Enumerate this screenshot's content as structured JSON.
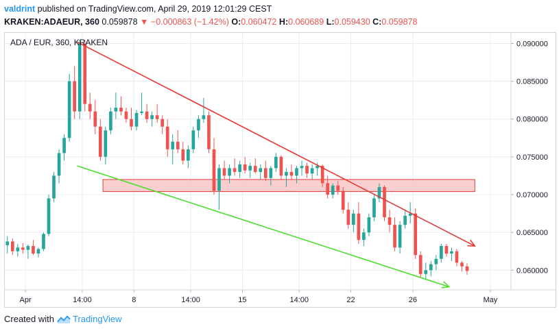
{
  "header": {
    "author": "valdrint",
    "published_text": "published on TradingView.com, April 29, 2019 12:01:29 CEST",
    "symbol": "KRAKEN:ADAEUR, 360",
    "last_price": "0.059878",
    "change_arrow": "▼",
    "change": "−0.000863 (−1.42%)",
    "o_label": "O:",
    "o_value": "0.060472",
    "h_label": "H:",
    "h_value": "0.060689",
    "l_label": "L:",
    "l_value": "0.059430",
    "c_label": "C:",
    "c_value": "0.059878"
  },
  "footer": {
    "created_with": "Created with",
    "brand": "TradingView"
  },
  "colors": {
    "up": "#26a69a",
    "down": "#ef5350",
    "resistance": "#e53935",
    "support": "#4cde2e",
    "zone_fill": "#f8c5c5",
    "zone_stroke": "#e53935",
    "grid": "#e9ecf1",
    "axis_text": "#131722",
    "accent": "#2196f3"
  },
  "chart_data": {
    "type": "candlestick",
    "title": "ADA / EUR, 360, KRAKEN",
    "ylim": [
      0.0574,
      0.0914
    ],
    "y_ticks": [
      "0.090000",
      "0.085000",
      "0.080000",
      "0.075000",
      "0.070000",
      "0.065000",
      "0.060000"
    ],
    "y_tick_values": [
      0.09,
      0.085,
      0.08,
      0.075,
      0.07,
      0.065,
      0.06
    ],
    "x_ticks": [
      {
        "label": "Apr",
        "x": 4
      },
      {
        "label": "14:00",
        "x": 15
      },
      {
        "label": "8",
        "x": 25
      },
      {
        "label": "14:00",
        "x": 36
      },
      {
        "label": "15",
        "x": 46
      },
      {
        "label": "14:00",
        "x": 57
      },
      {
        "label": "22",
        "x": 67
      },
      {
        "label": "26",
        "x": 79
      },
      {
        "label": "May",
        "x": 94
      }
    ],
    "x_range": [
      0,
      98
    ],
    "candles_ohlc": [
      [
        0.0633,
        0.0645,
        0.0622,
        0.0638
      ],
      [
        0.0638,
        0.0642,
        0.062,
        0.0625
      ],
      [
        0.0625,
        0.0635,
        0.0618,
        0.063
      ],
      [
        0.063,
        0.0636,
        0.0622,
        0.0627
      ],
      [
        0.0627,
        0.0634,
        0.0615,
        0.0632
      ],
      [
        0.0632,
        0.064,
        0.062,
        0.0622
      ],
      [
        0.0622,
        0.063,
        0.0617,
        0.0628
      ],
      [
        0.0628,
        0.065,
        0.0625,
        0.0648
      ],
      [
        0.0648,
        0.07,
        0.0645,
        0.0695
      ],
      [
        0.0695,
        0.073,
        0.069,
        0.0725
      ],
      [
        0.0725,
        0.076,
        0.0715,
        0.0755
      ],
      [
        0.0755,
        0.078,
        0.0745,
        0.0775
      ],
      [
        0.0775,
        0.086,
        0.077,
        0.085
      ],
      [
        0.085,
        0.087,
        0.08,
        0.081
      ],
      [
        0.081,
        0.0905,
        0.08,
        0.09
      ],
      [
        0.09,
        0.0905,
        0.081,
        0.082
      ],
      [
        0.082,
        0.0835,
        0.08,
        0.081
      ],
      [
        0.081,
        0.0825,
        0.078,
        0.079
      ],
      [
        0.079,
        0.08,
        0.0745,
        0.075
      ],
      [
        0.075,
        0.079,
        0.074,
        0.0785
      ],
      [
        0.0785,
        0.0815,
        0.078,
        0.081
      ],
      [
        0.081,
        0.0835,
        0.08,
        0.0815
      ],
      [
        0.0815,
        0.083,
        0.0805,
        0.081
      ],
      [
        0.081,
        0.0815,
        0.0795,
        0.08
      ],
      [
        0.08,
        0.0815,
        0.0785,
        0.079
      ],
      [
        0.079,
        0.0812,
        0.0785,
        0.0808
      ],
      [
        0.0808,
        0.0835,
        0.0805,
        0.081
      ],
      [
        0.081,
        0.082,
        0.0795,
        0.08
      ],
      [
        0.08,
        0.081,
        0.079,
        0.0805
      ],
      [
        0.0805,
        0.082,
        0.0795,
        0.08
      ],
      [
        0.08,
        0.0805,
        0.078,
        0.079
      ],
      [
        0.079,
        0.08,
        0.075,
        0.076
      ],
      [
        0.076,
        0.078,
        0.074,
        0.077
      ],
      [
        0.077,
        0.0785,
        0.0755,
        0.076
      ],
      [
        0.076,
        0.077,
        0.074,
        0.0745
      ],
      [
        0.0745,
        0.0765,
        0.0735,
        0.076
      ],
      [
        0.076,
        0.079,
        0.0755,
        0.0785
      ],
      [
        0.0785,
        0.0805,
        0.0775,
        0.08
      ],
      [
        0.08,
        0.0828,
        0.0795,
        0.0805
      ],
      [
        0.0805,
        0.081,
        0.0755,
        0.076
      ],
      [
        0.076,
        0.0775,
        0.07,
        0.0705
      ],
      [
        0.0705,
        0.074,
        0.068,
        0.0735
      ],
      [
        0.0735,
        0.0745,
        0.072,
        0.0725
      ],
      [
        0.0725,
        0.074,
        0.0715,
        0.0735
      ],
      [
        0.0735,
        0.0748,
        0.0725,
        0.073
      ],
      [
        0.073,
        0.0745,
        0.0722,
        0.074
      ],
      [
        0.074,
        0.075,
        0.0728,
        0.0732
      ],
      [
        0.0732,
        0.0742,
        0.0722,
        0.0738
      ],
      [
        0.0738,
        0.0748,
        0.0728,
        0.073
      ],
      [
        0.073,
        0.074,
        0.072,
        0.0735
      ],
      [
        0.0735,
        0.0745,
        0.0718,
        0.0722
      ],
      [
        0.0722,
        0.0738,
        0.0712,
        0.0735
      ],
      [
        0.0735,
        0.0755,
        0.073,
        0.075
      ],
      [
        0.075,
        0.0752,
        0.072,
        0.0725
      ],
      [
        0.0725,
        0.0735,
        0.071,
        0.073
      ],
      [
        0.073,
        0.074,
        0.072,
        0.0725
      ],
      [
        0.0725,
        0.0738,
        0.0715,
        0.0735
      ],
      [
        0.0735,
        0.0745,
        0.0725,
        0.0738
      ],
      [
        0.0738,
        0.0742,
        0.0722,
        0.0728
      ],
      [
        0.0728,
        0.074,
        0.072,
        0.0735
      ],
      [
        0.0735,
        0.0742,
        0.0725,
        0.0738
      ],
      [
        0.0738,
        0.074,
        0.071,
        0.0715
      ],
      [
        0.0715,
        0.0725,
        0.0695,
        0.07
      ],
      [
        0.07,
        0.0715,
        0.0695,
        0.0712
      ],
      [
        0.0712,
        0.0718,
        0.07,
        0.0705
      ],
      [
        0.0705,
        0.071,
        0.0675,
        0.068
      ],
      [
        0.068,
        0.069,
        0.0655,
        0.066
      ],
      [
        0.066,
        0.068,
        0.065,
        0.0675
      ],
      [
        0.0675,
        0.069,
        0.0635,
        0.064
      ],
      [
        0.064,
        0.0655,
        0.0632,
        0.065
      ],
      [
        0.065,
        0.0675,
        0.0645,
        0.067
      ],
      [
        0.067,
        0.07,
        0.0665,
        0.0695
      ],
      [
        0.0695,
        0.0715,
        0.069,
        0.071
      ],
      [
        0.071,
        0.0712,
        0.0665,
        0.067
      ],
      [
        0.067,
        0.068,
        0.065,
        0.066
      ],
      [
        0.066,
        0.067,
        0.0625,
        0.063
      ],
      [
        0.063,
        0.0665,
        0.0622,
        0.066
      ],
      [
        0.066,
        0.068,
        0.0655,
        0.0672
      ],
      [
        0.0672,
        0.069,
        0.0662,
        0.0675
      ],
      [
        0.0675,
        0.0682,
        0.0615,
        0.062
      ],
      [
        0.062,
        0.0625,
        0.059,
        0.0595
      ],
      [
        0.0595,
        0.061,
        0.0588,
        0.06
      ],
      [
        0.06,
        0.0612,
        0.0592,
        0.0608
      ],
      [
        0.0608,
        0.062,
        0.06,
        0.0615
      ],
      [
        0.0615,
        0.0635,
        0.061,
        0.0632
      ],
      [
        0.0632,
        0.0635,
        0.0618,
        0.0622
      ],
      [
        0.0622,
        0.063,
        0.0612,
        0.0625
      ],
      [
        0.0625,
        0.0628,
        0.0605,
        0.061
      ],
      [
        0.061,
        0.0612,
        0.0598,
        0.0605
      ],
      [
        0.0605,
        0.0609,
        0.0594,
        0.0599
      ]
    ],
    "annotations": {
      "resistance_line": {
        "from": [
          14,
          0.0902
        ],
        "to": [
          91,
          0.0632
        ]
      },
      "support_line": {
        "from": [
          14,
          0.0738
        ],
        "to": [
          86,
          0.0578
        ]
      },
      "zone": {
        "x0": 19,
        "x1": 91,
        "y0": 0.0704,
        "y1": 0.072
      }
    }
  }
}
